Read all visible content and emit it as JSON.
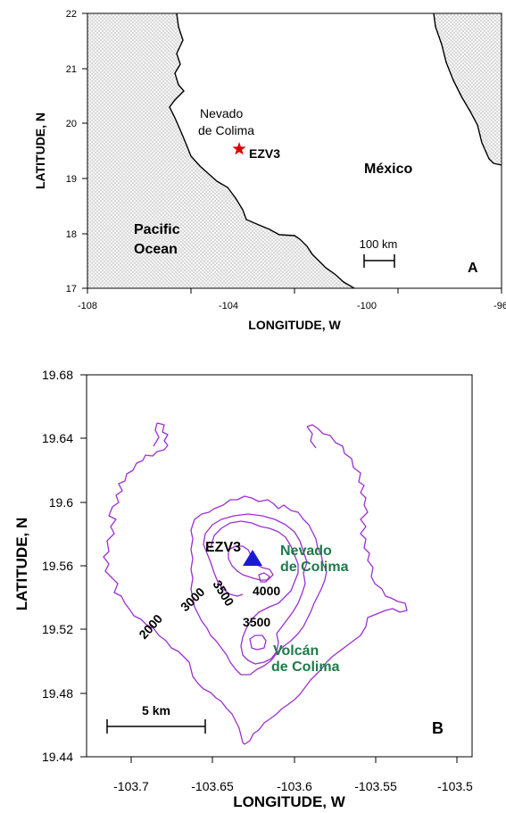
{
  "panel_a": {
    "letter": "A",
    "x_axis_label": "LONGITUDE, W",
    "y_axis_label": "LATITUDE, N",
    "x_ticks": [
      "-108",
      "-104",
      "-100",
      "-96"
    ],
    "y_ticks": [
      "22",
      "21",
      "20",
      "19",
      "18",
      "17"
    ],
    "volcano_label_line1": "Nevado",
    "volcano_label_line2": "de Colima",
    "station_label": "EZV3",
    "country_label": "México",
    "ocean_label_line1": "Pacific",
    "ocean_label_line2": "Ocean",
    "scale_label": "100 km",
    "land_color": "#ffffff",
    "ocean_color": "#e4e4e4",
    "station_marker_color": "#e00000",
    "station_marker_icon": "red-star-icon"
  },
  "panel_b": {
    "letter": "B",
    "x_axis_label": "LONGITUDE, W",
    "y_axis_label": "LATITUDE, N",
    "x_ticks": [
      "-103.7",
      "-103.65",
      "-103.6",
      "-103.55",
      "-103.5"
    ],
    "y_ticks": [
      "19.68",
      "19.64",
      "19.6",
      "19.56",
      "19.52",
      "19.48",
      "19.44"
    ],
    "station_label": "EZV3",
    "nevado_label_line1": "Nevado",
    "nevado_label_line2": "de Colima",
    "volcan_label_line1": "Volcán",
    "volcan_label_line2": "de Colima",
    "contour_labels": [
      "2000",
      "3000",
      "3500",
      "4000",
      "3500"
    ],
    "scale_label": "5 km",
    "contour_color": "#9b30d0",
    "peak_label_color": "#1e7a4a",
    "station_marker_color": "#1a1ad6",
    "station_marker_icon": "blue-triangle-icon"
  }
}
